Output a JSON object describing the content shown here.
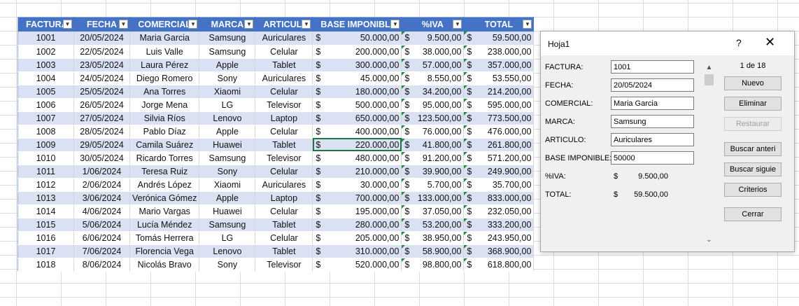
{
  "table": {
    "headers": [
      "FACTURA",
      "FECHA",
      "COMERCIAL",
      "MARCA",
      "ARTICULO",
      "BASE IMPONIBLE",
      "%IVA",
      "TOTAL"
    ],
    "currency": "$",
    "rows": [
      [
        "1001",
        "20/05/2024",
        "Maria Garcia",
        "Samsung",
        "Auriculares",
        "50.000,00",
        "9.500,00",
        "59.500,00"
      ],
      [
        "1002",
        "22/05/2024",
        "Luis Valle",
        "Samsung",
        "Celular",
        "200.000,00",
        "38.000,00",
        "238.000,00"
      ],
      [
        "1003",
        "23/05/2024",
        "Laura Pérez",
        "Apple",
        "Tablet",
        "300.000,00",
        "57.000,00",
        "357.000,00"
      ],
      [
        "1004",
        "24/05/2024",
        "Diego Romero",
        "Sony",
        "Auriculares",
        "45.000,00",
        "8.550,00",
        "53.550,00"
      ],
      [
        "1005",
        "25/05/2024",
        "Ana Torres",
        "Xiaomi",
        "Celular",
        "180.000,00",
        "34.200,00",
        "214.200,00"
      ],
      [
        "1006",
        "26/05/2024",
        "Jorge Mena",
        "LG",
        "Televisor",
        "500.000,00",
        "95.000,00",
        "595.000,00"
      ],
      [
        "1007",
        "27/05/2024",
        "Silvia Ríos",
        "Lenovo",
        "Laptop",
        "650.000,00",
        "123.500,00",
        "773.500,00"
      ],
      [
        "1008",
        "28/05/2024",
        "Pablo Díaz",
        "Apple",
        "Celular",
        "400.000,00",
        "76.000,00",
        "476.000,00"
      ],
      [
        "1009",
        "29/05/2024",
        "Camila Suárez",
        "Huawei",
        "Tablet",
        "220.000,00",
        "41.800,00",
        "261.800,00"
      ],
      [
        "1010",
        "30/05/2024",
        "Ricardo Torres",
        "Samsung",
        "Televisor",
        "480.000,00",
        "91.200,00",
        "571.200,00"
      ],
      [
        "1011",
        "1/06/2024",
        "Teresa Ruiz",
        "Sony",
        "Celular",
        "210.000,00",
        "39.900,00",
        "249.900,00"
      ],
      [
        "1012",
        "2/06/2024",
        "Andrés López",
        "Xiaomi",
        "Auriculares",
        "30.000,00",
        "5.700,00",
        "35.700,00"
      ],
      [
        "1013",
        "3/06/2024",
        "Verónica Gómez",
        "Apple",
        "Laptop",
        "700.000,00",
        "133.000,00",
        "833.000,00"
      ],
      [
        "1014",
        "4/06/2024",
        "Mario Vargas",
        "Huawei",
        "Celular",
        "195.000,00",
        "37.050,00",
        "232.050,00"
      ],
      [
        "1015",
        "5/06/2024",
        "Lucía Méndez",
        "Samsung",
        "Tablet",
        "280.000,00",
        "53.200,00",
        "333.200,00"
      ],
      [
        "1016",
        "6/06/2024",
        "Tomás Herrera",
        "LG",
        "Celular",
        "205.000,00",
        "38.950,00",
        "243.950,00"
      ],
      [
        "1017",
        "7/06/2024",
        "Florencia Vega",
        "Lenovo",
        "Tablet",
        "310.000,00",
        "58.900,00",
        "368.900,00"
      ],
      [
        "1018",
        "8/06/2024",
        "Nicolás Bravo",
        "Sony",
        "Televisor",
        "520.000,00",
        "98.800,00",
        "618.800,00"
      ]
    ]
  },
  "dialog": {
    "title": "Hoja1",
    "help": "?",
    "close": "✕",
    "counter": "1 de 18",
    "fields": [
      {
        "label": "FACTURA:",
        "value": "1001"
      },
      {
        "label": "FECHA:",
        "value": "20/05/2024"
      },
      {
        "label": "COMERCIAL:",
        "value": "Maria Garcia"
      },
      {
        "label": "MARCA:",
        "value": "Samsung"
      },
      {
        "label": "ARTICULO:",
        "value": "Auriculares"
      },
      {
        "label": "BASE IMPONIBLE:",
        "value": "50000"
      }
    ],
    "computed": [
      {
        "label": "%IVA:",
        "currency": "$",
        "value": "9.500,00"
      },
      {
        "label": "TOTAL:",
        "currency": "$",
        "value": "59.500,00"
      }
    ],
    "buttons": {
      "nuevo": "Nuevo",
      "eliminar": "Eliminar",
      "restaurar": "Restaurar",
      "buscar_anterior": "Buscar anteri",
      "buscar_siguiente": "Buscar siguie",
      "criterios": "Criterios",
      "cerrar": "Cerrar"
    },
    "scroll_up": "▲",
    "scroll_down": "⌄"
  },
  "icons": {
    "filter": "filter-dropdown-icon",
    "close": "close-icon"
  },
  "colors": {
    "header_bg": "#4472c4",
    "band_row": "#d9e1f2",
    "error_triangle": "#1e8e3e",
    "selection": "#217346"
  }
}
